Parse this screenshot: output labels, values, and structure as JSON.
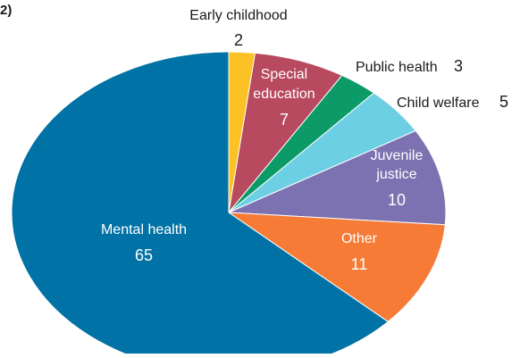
{
  "figure_label": "2)",
  "chart_data": {
    "type": "pie",
    "title": "",
    "slices": [
      {
        "label": "Early childhood",
        "value": 2,
        "color": "#fcc124"
      },
      {
        "label": "Special education",
        "value": 7,
        "color": "#b74a5e"
      },
      {
        "label": "Public health",
        "value": 3,
        "color": "#0c9a68"
      },
      {
        "label": "Child welfare",
        "value": 5,
        "color": "#6ccfe4"
      },
      {
        "label": "Juvenile justice",
        "value": 10,
        "color": "#7d72b1"
      },
      {
        "label": "Other",
        "value": 11,
        "color": "#f57b36"
      },
      {
        "label": "Mental health",
        "value": 65,
        "color": "#0072a5"
      }
    ],
    "start_angle": "12 o'clock",
    "direction": "clockwise",
    "legend": "none",
    "data_labels": "on-slice and outside"
  }
}
